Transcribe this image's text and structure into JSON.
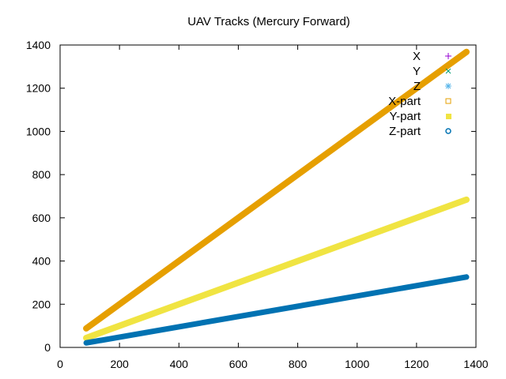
{
  "chart_data": {
    "type": "scatter",
    "title": "UAV Tracks (Mercury Forward)",
    "xlabel": "",
    "ylabel": "",
    "xlim": [
      0,
      1400
    ],
    "ylim": [
      0,
      1400
    ],
    "xticks": [
      0,
      200,
      400,
      600,
      800,
      1000,
      1200,
      1400
    ],
    "yticks": [
      0,
      200,
      400,
      600,
      800,
      1000,
      1200,
      1400
    ],
    "grid": false,
    "legend_position": "top-right",
    "series": [
      {
        "name": "X",
        "marker": "plus",
        "color": "#9400d3",
        "x_range": [
          88,
          1368
        ],
        "y_range": [
          88,
          1368
        ],
        "visible": false
      },
      {
        "name": "Y",
        "marker": "cross",
        "color": "#009e73",
        "x_range": [
          88,
          1368
        ],
        "y_range": [
          44,
          684
        ],
        "visible": false
      },
      {
        "name": "Z",
        "marker": "star",
        "color": "#56b4e9",
        "x_range": [
          88,
          1368
        ],
        "y_range": [
          21,
          326
        ],
        "visible": false
      },
      {
        "name": "X-part",
        "marker": "open-square",
        "color": "#e69f00",
        "x_range": [
          88,
          1368
        ],
        "y_range": [
          88,
          1368
        ],
        "visible": true
      },
      {
        "name": "Y-part",
        "marker": "filled-square",
        "color": "#f0e442",
        "x_range": [
          88,
          1368
        ],
        "y_range": [
          44,
          684
        ],
        "visible": true
      },
      {
        "name": "Z-part",
        "marker": "open-circle",
        "color": "#0072b2",
        "x_range": [
          88,
          1368
        ],
        "y_range": [
          21,
          326
        ],
        "visible": true
      }
    ]
  }
}
